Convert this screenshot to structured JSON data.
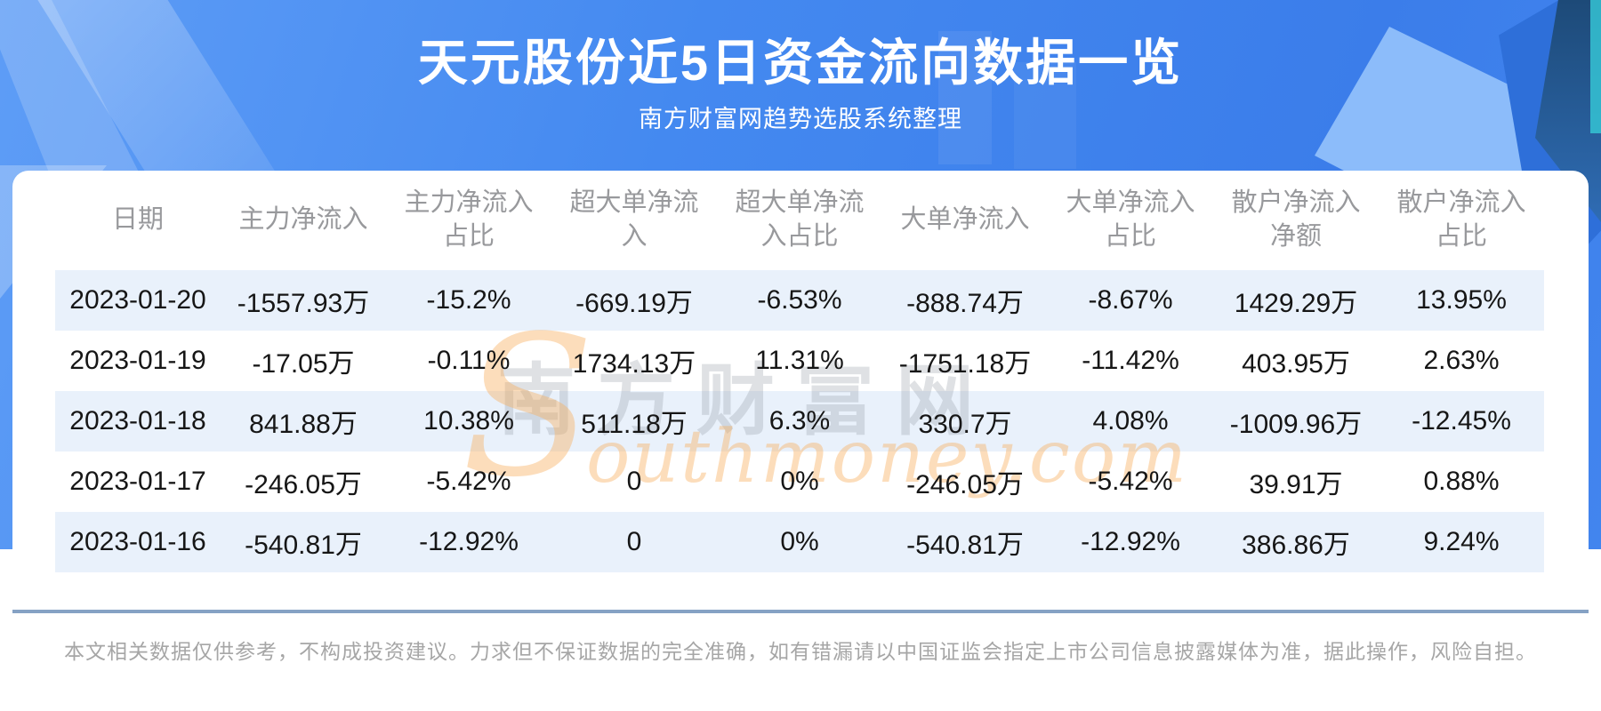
{
  "hero": {
    "title": "天元股份近5日资金流向数据一览",
    "subtitle": "南方财富网趋势选股系统整理"
  },
  "table": {
    "columns": [
      "日期",
      "主力净流入",
      "主力净流入\n占比",
      "超大单净流\n入",
      "超大单净流\n入占比",
      "大单净流入",
      "大单净流入\n占比",
      "散户净流入\n净额",
      "散户净流入\n占比"
    ],
    "rows": [
      [
        "2023-01-20",
        "-1557.93万",
        "-15.2%",
        "-669.19万",
        "-6.53%",
        "-888.74万",
        "-8.67%",
        "1429.29万",
        "13.95%"
      ],
      [
        "2023-01-19",
        "-17.05万",
        "-0.11%",
        "1734.13万",
        "11.31%",
        "-1751.18万",
        "-11.42%",
        "403.95万",
        "2.63%"
      ],
      [
        "2023-01-18",
        "841.88万",
        "10.38%",
        "511.18万",
        "6.3%",
        "330.7万",
        "4.08%",
        "-1009.96万",
        "-12.45%"
      ],
      [
        "2023-01-17",
        "-246.05万",
        "-5.42%",
        "0",
        "0%",
        "-246.05万",
        "-5.42%",
        "39.91万",
        "0.88%"
      ],
      [
        "2023-01-16",
        "-540.81万",
        "-12.92%",
        "0",
        "0%",
        "-540.81万",
        "-12.92%",
        "386.86万",
        "9.24%"
      ]
    ]
  },
  "watermark": {
    "cn": "南方财富网",
    "en_initial": "S",
    "en_rest": "outhmoney.com"
  },
  "footer": {
    "disclaimer": "本文相关数据仅供参考，不构成投资建议。力求但不保证数据的完全准确，如有错漏请以中国证监会指定上市公司信息披露媒体为准，据此操作，风险自担。"
  },
  "colors": {
    "banner_blue": "#4489f0",
    "row_stripe": "#e9f1fb",
    "divider": "#86a2c4",
    "header_text": "#98999c",
    "watermark_orange": "#f7ad5c"
  },
  "chart_data": {
    "type": "table",
    "title": "天元股份近5日资金流向数据一览",
    "subtitle": "南方财富网趋势选股系统整理",
    "columns": [
      "日期",
      "主力净流入",
      "主力净流入占比",
      "超大单净流入",
      "超大单净流入占比",
      "大单净流入",
      "大单净流入占比",
      "散户净流入净额",
      "散户净流入占比"
    ],
    "rows": [
      [
        "2023-01-20",
        "-1557.93万",
        "-15.2%",
        "-669.19万",
        "-6.53%",
        "-888.74万",
        "-8.67%",
        "1429.29万",
        "13.95%"
      ],
      [
        "2023-01-19",
        "-17.05万",
        "-0.11%",
        "1734.13万",
        "11.31%",
        "-1751.18万",
        "-11.42%",
        "403.95万",
        "2.63%"
      ],
      [
        "2023-01-18",
        "841.88万",
        "10.38%",
        "511.18万",
        "6.3%",
        "330.7万",
        "4.08%",
        "-1009.96万",
        "-12.45%"
      ],
      [
        "2023-01-17",
        "-246.05万",
        "-5.42%",
        "0",
        "0%",
        "-246.05万",
        "-5.42%",
        "39.91万",
        "0.88%"
      ],
      [
        "2023-01-16",
        "-540.81万",
        "-12.92%",
        "0",
        "0%",
        "-540.81万",
        "-12.92%",
        "386.86万",
        "9.24%"
      ]
    ]
  }
}
